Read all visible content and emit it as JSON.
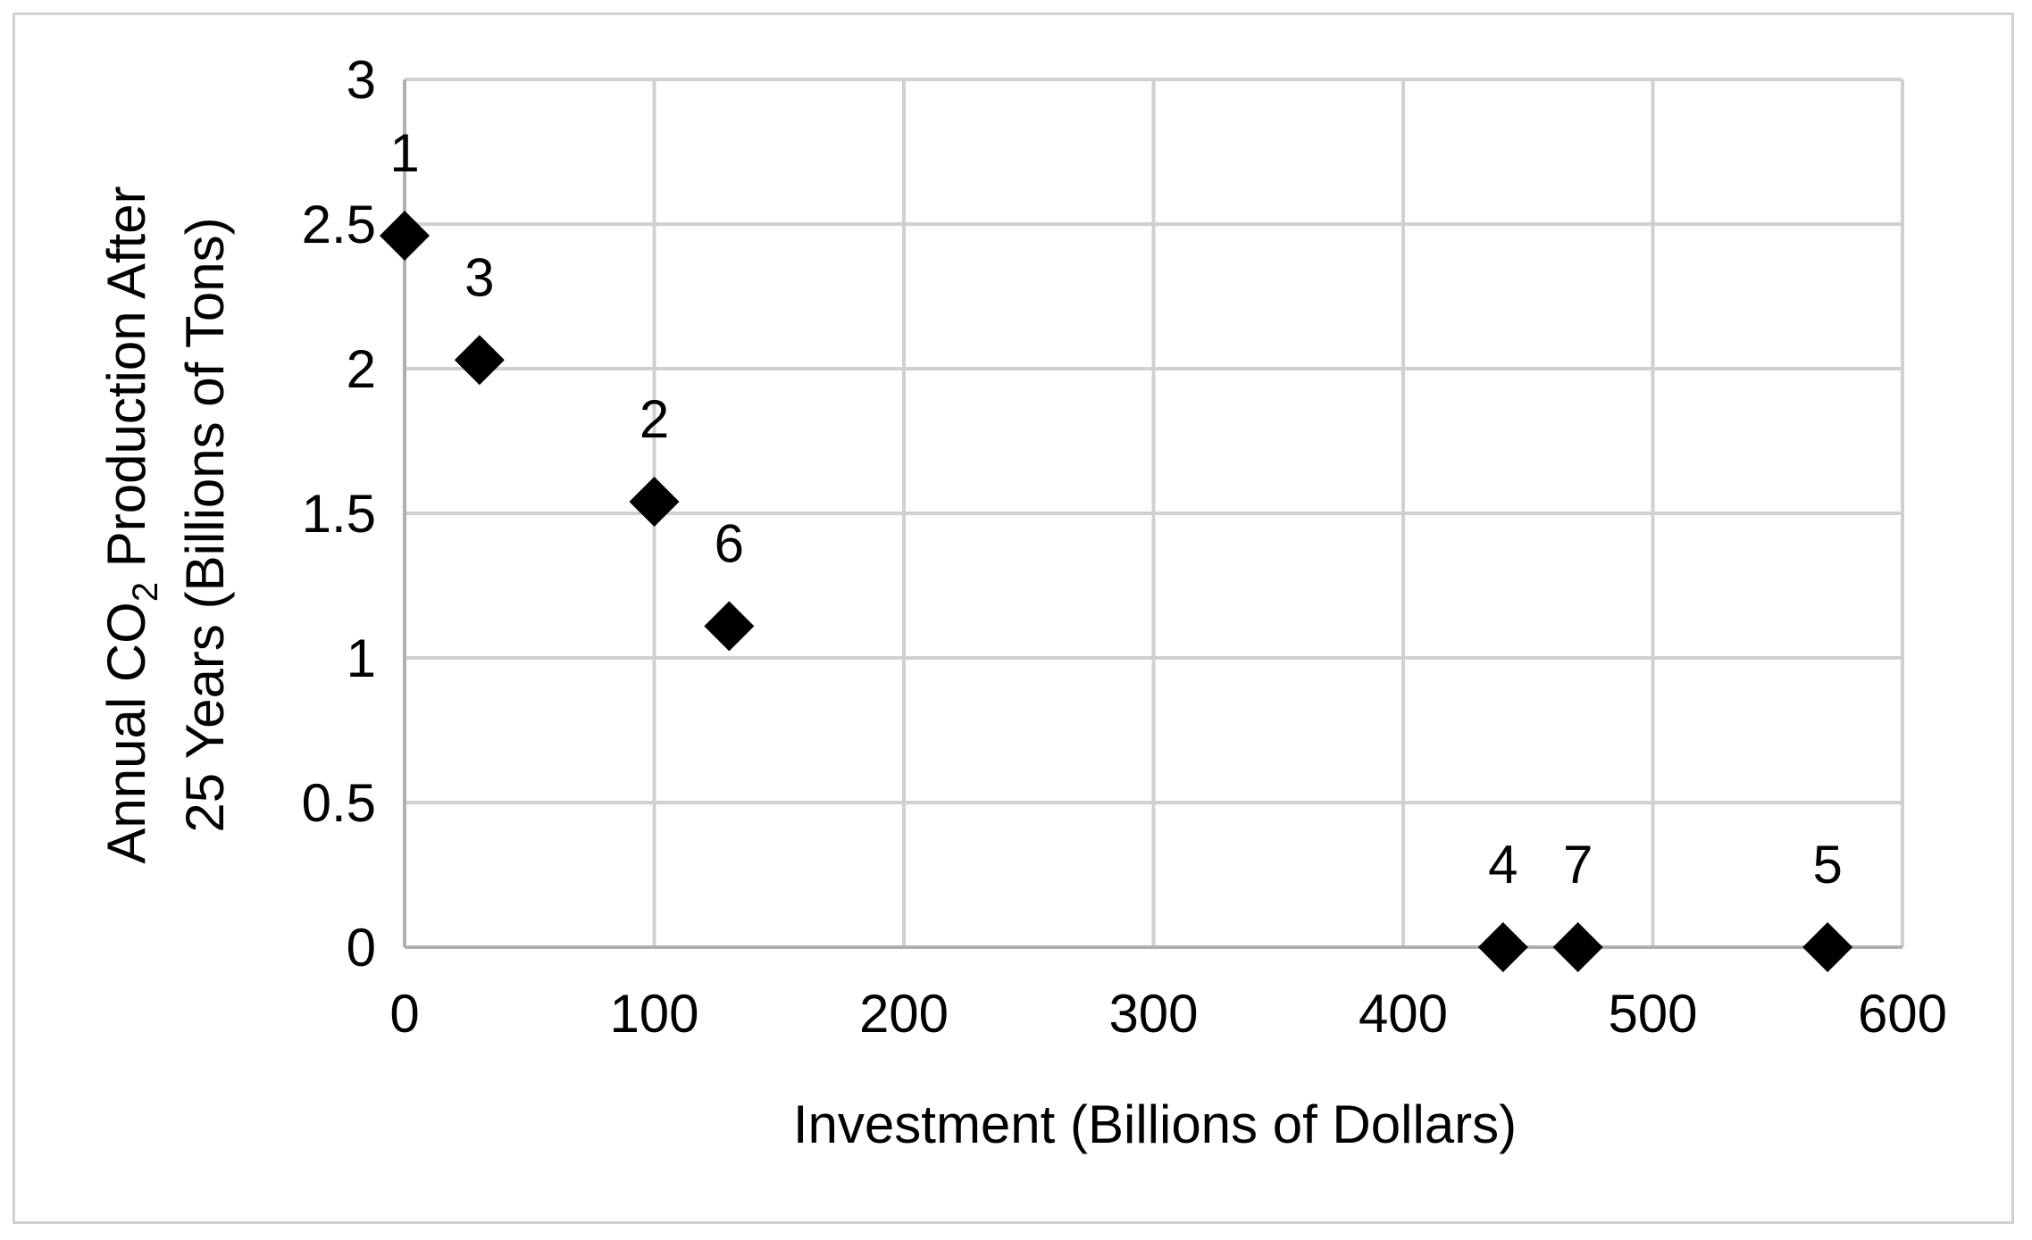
{
  "chart_data": {
    "type": "scatter",
    "title": "",
    "xlabel": "Investment (Billions of Dollars)",
    "ylabel": {
      "line1_pre": "Annual CO",
      "line1_sub": "2",
      "line1_post": " Production After",
      "line2": "25 Years (Billions of Tons)"
    },
    "xlim": [
      0,
      600
    ],
    "ylim": [
      0,
      3
    ],
    "x_ticks": [
      "0",
      "100",
      "200",
      "300",
      "400",
      "500",
      "600"
    ],
    "y_ticks": [
      "0",
      "0.5",
      "1",
      "1.5",
      "2",
      "2.5",
      "3"
    ],
    "grid": true,
    "legend": "none",
    "marker": "diamond",
    "marker_color": "#000000",
    "points": [
      {
        "label": "1",
        "x": 0,
        "y": 2.46
      },
      {
        "label": "3",
        "x": 30,
        "y": 2.03
      },
      {
        "label": "2",
        "x": 100,
        "y": 1.54
      },
      {
        "label": "6",
        "x": 130,
        "y": 1.11
      },
      {
        "label": "4",
        "x": 440,
        "y": 0
      },
      {
        "label": "7",
        "x": 470,
        "y": 0
      },
      {
        "label": "5",
        "x": 570,
        "y": 0
      }
    ]
  }
}
